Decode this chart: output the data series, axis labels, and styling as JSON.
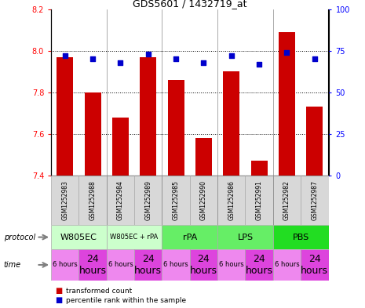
{
  "title": "GDS5601 / 1432719_at",
  "samples": [
    "GSM1252983",
    "GSM1252988",
    "GSM1252984",
    "GSM1252989",
    "GSM1252985",
    "GSM1252990",
    "GSM1252986",
    "GSM1252991",
    "GSM1252982",
    "GSM1252987"
  ],
  "transformed_counts": [
    7.97,
    7.8,
    7.68,
    7.97,
    7.86,
    7.58,
    7.9,
    7.47,
    8.09,
    7.73
  ],
  "percentile_ranks": [
    72,
    70,
    68,
    73,
    70,
    68,
    72,
    67,
    74,
    70
  ],
  "ylim_left": [
    7.4,
    8.2
  ],
  "ylim_right": [
    0,
    100
  ],
  "yticks_left": [
    7.4,
    7.6,
    7.8,
    8.0,
    8.2
  ],
  "yticks_right": [
    0,
    25,
    50,
    75,
    100
  ],
  "bar_color": "#cc0000",
  "dot_color": "#0000cc",
  "bar_bottom": 7.4,
  "protocols": [
    {
      "label": "W805EC",
      "start": 0,
      "end": 2,
      "color": "#ccffcc"
    },
    {
      "label": "W805EC + rPA",
      "start": 2,
      "end": 4,
      "color": "#ccffcc"
    },
    {
      "label": "rPA",
      "start": 4,
      "end": 6,
      "color": "#66ee66"
    },
    {
      "label": "LPS",
      "start": 6,
      "end": 8,
      "color": "#66ee66"
    },
    {
      "label": "PBS",
      "start": 8,
      "end": 10,
      "color": "#22dd22"
    }
  ],
  "protocol_fontsize": [
    8,
    6,
    8,
    8,
    8
  ],
  "times": [
    "6 hours",
    "24\nhours",
    "6 hours",
    "24\nhours",
    "6 hours",
    "24\nhours",
    "6 hours",
    "24\nhours",
    "6 hours",
    "24\nhours"
  ],
  "time_colors": [
    "#ee88ee",
    "#dd44dd",
    "#ee88ee",
    "#dd44dd",
    "#ee88ee",
    "#dd44dd",
    "#ee88ee",
    "#dd44dd",
    "#ee88ee",
    "#dd44dd"
  ],
  "time_fontsizes": [
    6,
    9,
    6,
    9,
    6,
    9,
    6,
    9,
    6,
    9
  ],
  "legend_bar_label": "transformed count",
  "legend_dot_label": "percentile rank within the sample",
  "xlabel_protocol": "protocol",
  "xlabel_time": "time",
  "sample_bg": "#d8d8d8",
  "sample_fontsize": 5.5,
  "grid_ticks": [
    7.6,
    7.8,
    8.0
  ],
  "group_dividers": [
    1.5,
    3.5,
    5.5,
    7.5
  ]
}
